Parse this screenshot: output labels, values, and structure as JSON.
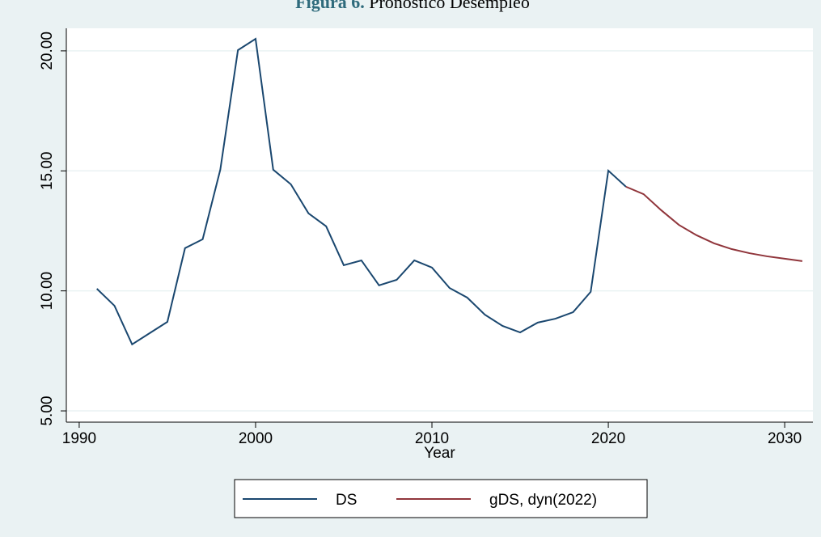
{
  "chart_data": {
    "type": "line",
    "title_label": "Figura 6.",
    "title": "Pronóstico Desempleo",
    "xlabel": "Year",
    "x": [
      1991,
      1992,
      1993,
      1994,
      1995,
      1996,
      1997,
      1998,
      1999,
      2000,
      2001,
      2002,
      2003,
      2004,
      2005,
      2006,
      2007,
      2008,
      2009,
      2010,
      2011,
      2012,
      2013,
      2014,
      2015,
      2016,
      2017,
      2018,
      2019,
      2020,
      2021,
      2022,
      2023,
      2024,
      2025,
      2026,
      2027,
      2028,
      2029,
      2030,
      2031
    ],
    "series": [
      {
        "name": "DS",
        "color": "#1a476f",
        "values": [
          10.09,
          9.38,
          7.77,
          8.24,
          8.71,
          11.78,
          12.15,
          15.05,
          20.03,
          20.5,
          15.05,
          14.44,
          13.23,
          12.69,
          11.07,
          11.27,
          10.23,
          10.46,
          11.27,
          10.97,
          10.12,
          9.72,
          9.01,
          8.54,
          8.27,
          8.68,
          8.84,
          9.11,
          9.96,
          15.01,
          14.34,
          null,
          null,
          null,
          null,
          null,
          null,
          null,
          null,
          null,
          null
        ]
      },
      {
        "name": "gDS, dyn(2022)",
        "color": "#90353b",
        "values": [
          null,
          null,
          null,
          null,
          null,
          null,
          null,
          null,
          null,
          null,
          null,
          null,
          null,
          null,
          null,
          null,
          null,
          null,
          null,
          null,
          null,
          null,
          null,
          null,
          null,
          null,
          null,
          null,
          null,
          null,
          14.34,
          14.03,
          13.36,
          12.75,
          12.32,
          11.98,
          11.74,
          11.57,
          11.44,
          11.34,
          11.24
        ]
      }
    ],
    "xlim": [
      1989.27,
      2031.6
    ],
    "xticks": [
      1990,
      2000,
      2010,
      2020,
      2030
    ],
    "ylim": [
      4.53,
      20.94
    ],
    "yticks": [
      {
        "value": 5,
        "label": "5.00"
      },
      {
        "value": 10,
        "label": "10.00"
      },
      {
        "value": 15,
        "label": "15.00"
      },
      {
        "value": 20,
        "label": "20.00"
      }
    ],
    "grid": true,
    "legend": "bottom"
  }
}
